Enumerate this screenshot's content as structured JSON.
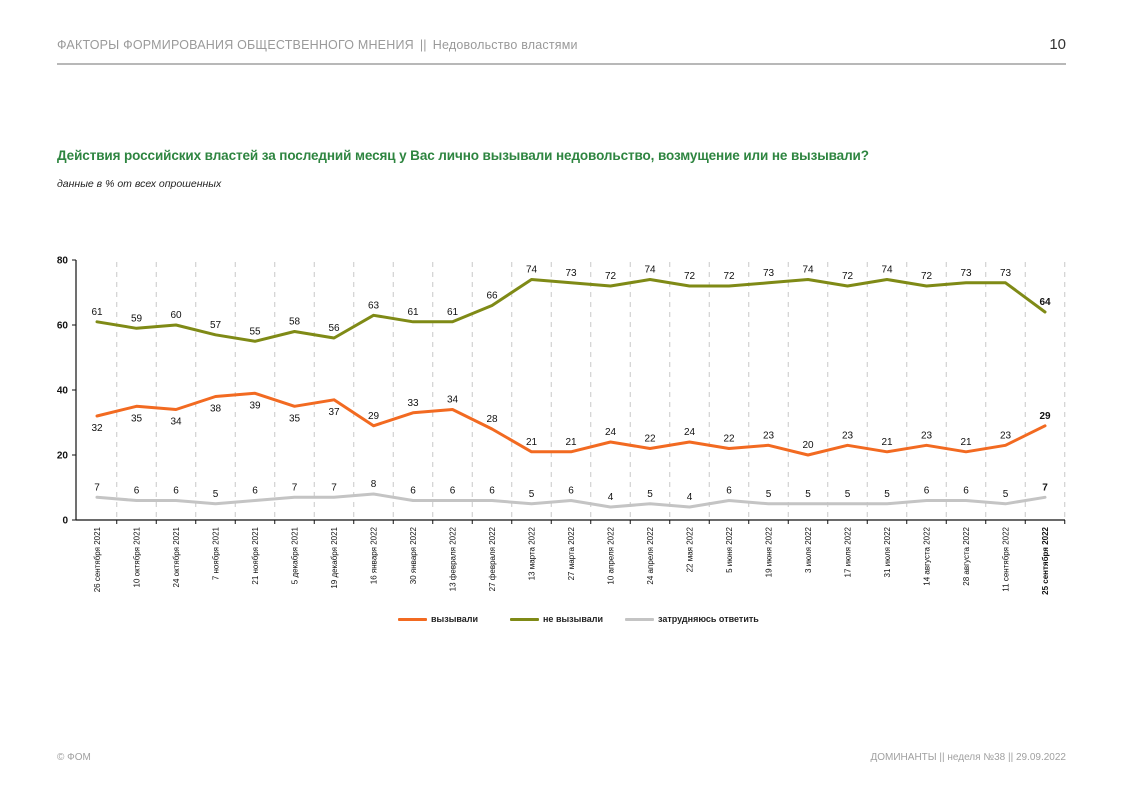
{
  "header": {
    "section": "ФАКТОРЫ ФОРМИРОВАНИЯ ОБЩЕСТВЕННОГО МНЕНИЯ",
    "separator": "||",
    "topic": "Недовольство властями",
    "page_number": "10"
  },
  "question": "Действия российских властей за последний месяц у Вас лично вызывали недовольство, возмущение или не вызывали?",
  "subtitle": "данные в % от всех опрошенных",
  "legend": [
    {
      "label": "вызывали",
      "color": "#f26a21"
    },
    {
      "label": "не вызывали",
      "color": "#7f8a16"
    },
    {
      "label": "затрудняюсь ответить",
      "color": "#c4c4c4"
    }
  ],
  "footer": {
    "left": "© ФОМ",
    "right": "ДОМИНАНТЫ  ||  неделя №38 || 29.09.2022"
  },
  "chart_data": {
    "type": "line",
    "title": "Действия российских властей за последний месяц у Вас лично вызывали недовольство, возмущение или не вызывали?",
    "xlabel": "",
    "ylabel": "",
    "ylim": [
      0,
      80
    ],
    "yticks": [
      0,
      20,
      40,
      60,
      80
    ],
    "grid": "vertical dashed",
    "legend_position": "bottom",
    "categories": [
      "26 сентября 2021",
      "10 октября 2021",
      "24 октября 2021",
      "7 ноября 2021",
      "21 ноября 2021",
      "5 декабря 2021",
      "19 декабря 2021",
      "16 января 2022",
      "30 января 2022",
      "13 февраля 2022",
      "27 февраля 2022",
      "13 марта 2022",
      "27 марта 2022",
      "10 апреля 2022",
      "24 апреля 2022",
      "22 мая 2022",
      "5 июня 2022",
      "19 июня 2022",
      "3 июля 2022",
      "17 июля 2022",
      "31 июля 2022",
      "14 августа 2022",
      "28 августа 2022",
      "11 сентября 2022",
      "25 сентября 2022"
    ],
    "series": [
      {
        "name": "вызывали",
        "color": "#f26a21",
        "values": [
          32,
          35,
          34,
          38,
          39,
          35,
          37,
          29,
          33,
          34,
          28,
          21,
          21,
          24,
          22,
          24,
          22,
          23,
          20,
          23,
          21,
          23,
          21,
          23,
          29
        ]
      },
      {
        "name": "не вызывали",
        "color": "#7f8a16",
        "values": [
          61,
          59,
          60,
          57,
          55,
          58,
          56,
          63,
          61,
          61,
          66,
          74,
          73,
          72,
          74,
          72,
          72,
          73,
          74,
          72,
          74,
          72,
          73,
          73,
          64
        ]
      },
      {
        "name": "затрудняюсь ответить",
        "color": "#c4c4c4",
        "values": [
          7,
          6,
          6,
          5,
          6,
          7,
          7,
          8,
          6,
          6,
          6,
          5,
          6,
          4,
          5,
          4,
          6,
          5,
          5,
          5,
          5,
          6,
          6,
          5,
          7
        ]
      }
    ]
  }
}
